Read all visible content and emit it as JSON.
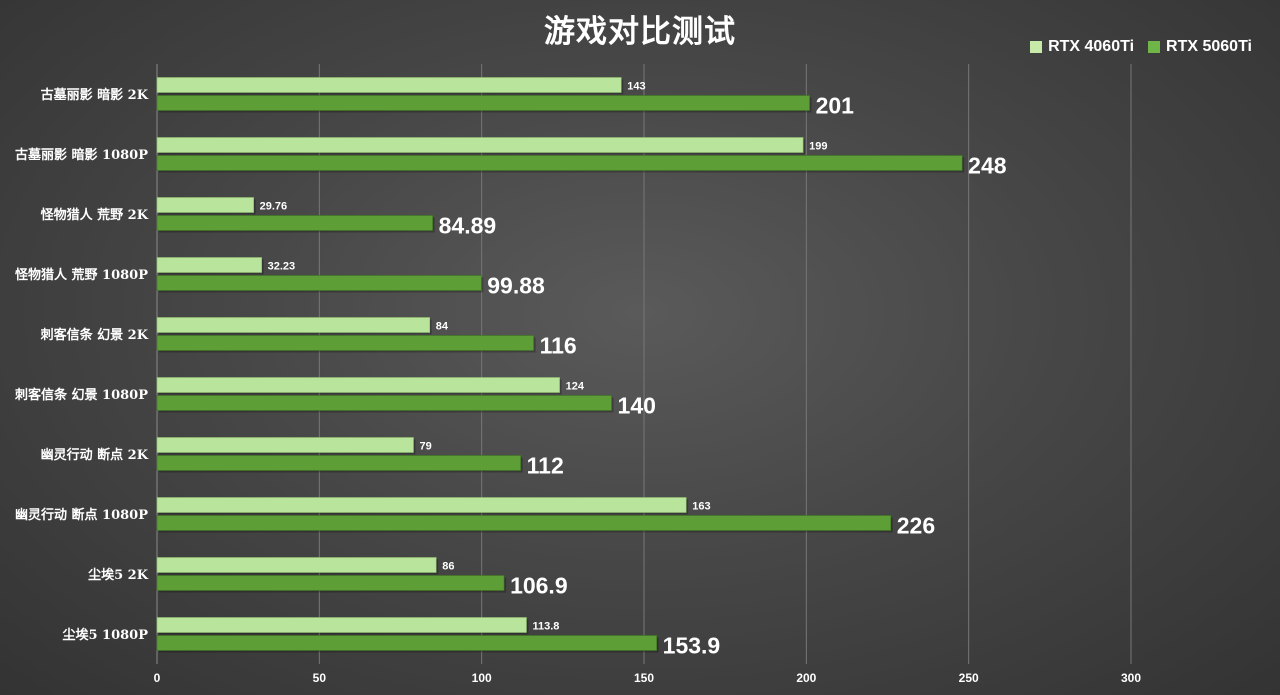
{
  "chart_data": {
    "type": "bar",
    "orientation": "horizontal",
    "title": "游戏对比测试",
    "categories": [
      "古墓丽影 暗影 2K",
      "古墓丽影 暗影 1080P",
      "怪物猎人 荒野 2K",
      "怪物猎人 荒野 1080P",
      "刺客信条 幻景 2K",
      "刺客信条 幻景 1080P",
      "幽灵行动 断点 2K",
      "幽灵行动 断点 1080P",
      "尘埃5 2K",
      "尘埃5 1080P"
    ],
    "series": [
      {
        "name": "RTX 4060Ti",
        "color": "#a9d98a",
        "values": [
          143,
          199,
          29.76,
          32.23,
          84,
          124,
          79,
          163,
          86,
          113.8
        ],
        "labels": [
          "143",
          "199",
          "29.76",
          "32.23",
          "84",
          "124",
          "79",
          "163",
          "86",
          "113.8"
        ]
      },
      {
        "name": "RTX 5060Ti",
        "color": "#5a9a32",
        "values": [
          201,
          248,
          84.89,
          99.88,
          116,
          140,
          112,
          226,
          106.9,
          153.9
        ],
        "labels": [
          "201",
          "248",
          "84.89",
          "99.88",
          "116",
          "140",
          "112",
          "226",
          "106.9",
          "153.9"
        ]
      }
    ],
    "xlim": [
      0,
      300
    ],
    "xticks": [
      0,
      50,
      100,
      150,
      200,
      250,
      300
    ],
    "xtick_labels": [
      "0",
      "50",
      "100",
      "150",
      "200",
      "250",
      "300"
    ],
    "grid": true,
    "legend_position": "top-right"
  }
}
